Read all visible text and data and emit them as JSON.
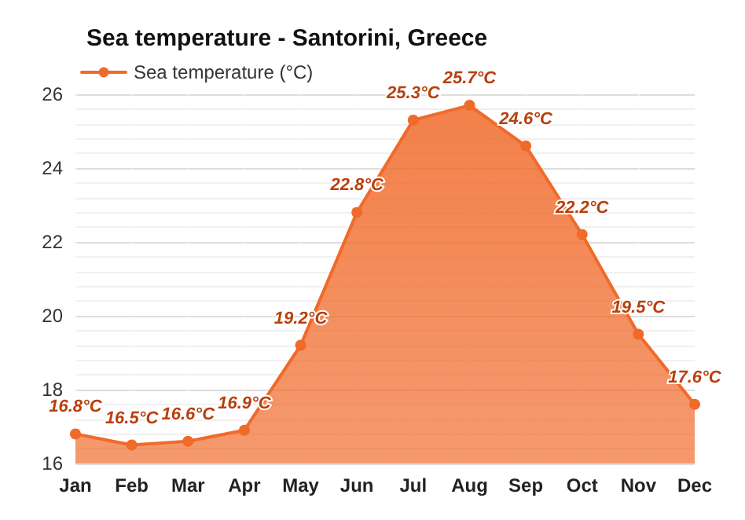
{
  "chart_data": {
    "type": "area",
    "title": "Sea temperature - Santorini, Greece",
    "categories": [
      "Jan",
      "Feb",
      "Mar",
      "Apr",
      "May",
      "Jun",
      "Jul",
      "Aug",
      "Sep",
      "Oct",
      "Nov",
      "Dec"
    ],
    "series": [
      {
        "name": "Sea temperature (°C)",
        "color": "#f06a2a",
        "values": [
          16.8,
          16.5,
          16.6,
          16.9,
          19.2,
          22.8,
          25.3,
          25.7,
          24.6,
          22.2,
          19.5,
          17.6
        ],
        "value_labels": [
          "16.8°C",
          "16.5°C",
          "16.6°C",
          "16.9°C",
          "19.2°C",
          "22.8°C",
          "25.3°C",
          "25.7°C",
          "24.6°C",
          "22.2°C",
          "19.5°C",
          "17.6°C"
        ]
      }
    ],
    "ylim": [
      16,
      26
    ],
    "yticks": [
      16,
      18,
      20,
      22,
      24,
      26
    ],
    "grid": true,
    "legend": "top left",
    "marker": "circle",
    "line_style": "solid"
  }
}
